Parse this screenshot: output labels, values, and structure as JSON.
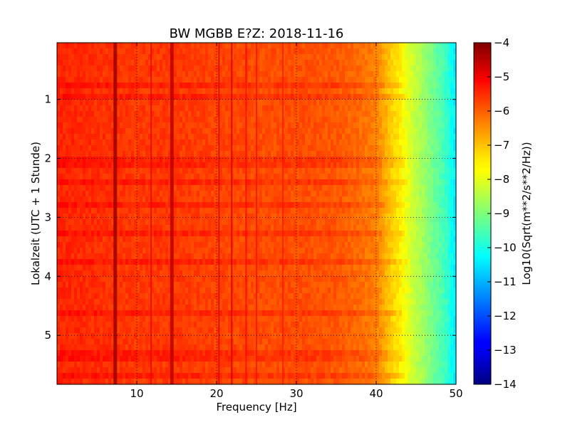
{
  "chart_data": {
    "type": "heatmap",
    "title": "BW MGBB E?Z: 2018-11-16",
    "xlabel": "Frequency [Hz]",
    "ylabel": "Lokalzeit (UTC + 1 Stunde)",
    "xlim": [
      0,
      50
    ],
    "ylim": [
      5.83,
      0.04
    ],
    "y_inverted": true,
    "x_ticks": [
      10,
      20,
      30,
      40,
      50
    ],
    "x_tick_labels": [
      "10",
      "20",
      "30",
      "40",
      "50"
    ],
    "y_ticks": [
      1,
      2,
      3,
      4,
      5
    ],
    "y_tick_labels": [
      "1",
      "2",
      "3",
      "4",
      "5"
    ],
    "grid": true,
    "colormap": "jet",
    "colorbar": {
      "label": "Log10(Sqrt(m**2/s**2/Hz))",
      "range": [
        -14,
        -4
      ],
      "ticks": [
        -4,
        -5,
        -6,
        -7,
        -8,
        -9,
        -10,
        -11,
        -12,
        -13,
        -14
      ],
      "tick_labels": [
        "−4",
        "−5",
        "−6",
        "−7",
        "−8",
        "−9",
        "−10",
        "−11",
        "−12",
        "−13",
        "−14"
      ]
    },
    "spectral_profile": {
      "frequency_hz": [
        0,
        5,
        10,
        15,
        20,
        25,
        30,
        35,
        38,
        40,
        41,
        42,
        43,
        44,
        45,
        46,
        47,
        48,
        49,
        49.5,
        50
      ],
      "level": [
        -5.6,
        -5.7,
        -5.8,
        -5.8,
        -5.9,
        -6.0,
        -6.0,
        -6.1,
        -6.3,
        -6.5,
        -6.9,
        -7.3,
        -7.6,
        -8.0,
        -8.4,
        -8.7,
        -9.1,
        -9.4,
        -9.8,
        -10.2,
        -10.4
      ]
    },
    "spectral_lines": [
      {
        "frequency_hz": 7.3,
        "level": -4.3
      },
      {
        "frequency_hz": 11.8,
        "level": -5.1
      },
      {
        "frequency_hz": 14.4,
        "level": -4.6
      },
      {
        "frequency_hz": 20.3,
        "level": -5.0
      },
      {
        "frequency_hz": 21.9,
        "level": -4.9
      },
      {
        "frequency_hz": 23.7,
        "level": -5.3
      },
      {
        "frequency_hz": 25.0,
        "level": -5.4
      },
      {
        "frequency_hz": 28.3,
        "level": -5.5
      }
    ],
    "banded_times_h": [
      0.75,
      0.95,
      2.0,
      2.15,
      2.4,
      2.8,
      3.3,
      3.75,
      4.6,
      5.3,
      5.4,
      5.7
    ]
  }
}
